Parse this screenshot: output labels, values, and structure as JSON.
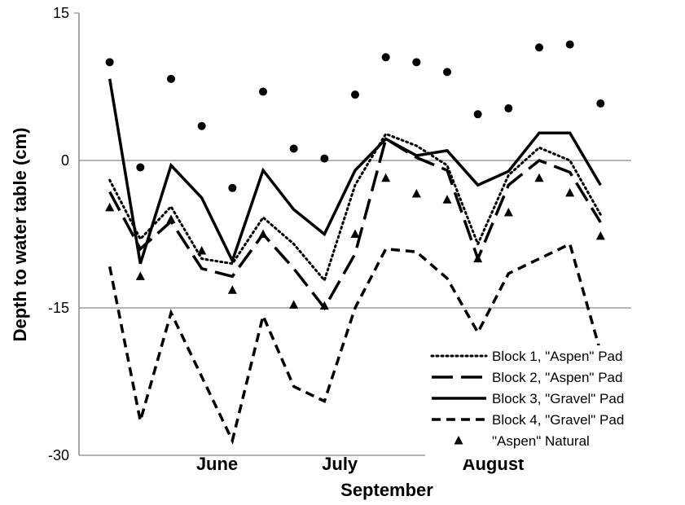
{
  "chart_data": {
    "type": "line",
    "ylabel": "Depth to water table (cm)",
    "xlabel": "September",
    "ylim": [
      -30,
      15
    ],
    "yticks": [
      "15",
      "0",
      "-15",
      "-30"
    ],
    "ytick_values": [
      15,
      0,
      -15,
      -30
    ],
    "month_labels": [
      {
        "label": "June",
        "at": 4.5
      },
      {
        "label": "July",
        "at": 8.5
      },
      {
        "label": "August",
        "at": 13.5
      }
    ],
    "x": [
      1,
      2,
      3,
      4,
      5,
      6,
      7,
      8,
      9,
      10,
      11,
      12,
      13,
      14,
      15,
      16,
      17
    ],
    "xlim": [
      0,
      18
    ],
    "gridlines": [
      0,
      -15
    ],
    "legend_position": "bottom-right",
    "series": [
      {
        "name": "Block 1, \"Aspen\" Pad",
        "style": "dotted",
        "values": [
          -2,
          -8,
          -4.7,
          -10,
          -10.5,
          -5.8,
          -8.5,
          -12.2,
          -2.5,
          2.7,
          1.5,
          -0.5,
          -8.5,
          -1.5,
          1.3,
          0,
          -5.5
        ]
      },
      {
        "name": "Block 2, \"Aspen\" Pad",
        "style": "long-dash",
        "values": [
          -3.2,
          -9,
          -6.2,
          -11,
          -11.8,
          -7.5,
          -11,
          -15,
          -9.5,
          2.2,
          0.3,
          -1,
          -10,
          -2.5,
          0,
          -1.2,
          -6.3
        ]
      },
      {
        "name": "Block 3, \"Gravel\" Pad",
        "style": "solid",
        "values": [
          8.3,
          -10.5,
          -0.5,
          -3.8,
          -10.2,
          -1,
          -5,
          -7.5,
          -1,
          2.2,
          0.5,
          1,
          -2.5,
          -1.1,
          2.8,
          2.8,
          -2.5
        ]
      },
      {
        "name": "Block 4, \"Gravel\" Pad",
        "style": "short-dash",
        "values": [
          -10.8,
          -26.5,
          -15.5,
          -22,
          -28.5,
          -15.8,
          -23,
          -24.5,
          -15,
          -9,
          -9.3,
          -12,
          -17.5,
          -11.5,
          -10,
          -8.5,
          -19.5
        ]
      },
      {
        "name": "\"Aspen\" Natural",
        "style": "triangle",
        "values": [
          -4.8,
          -11.8,
          -6,
          -9.2,
          -13.2,
          -7.5,
          -14.7,
          -14.8,
          -7.5,
          -1.8,
          -3.4,
          -4,
          -10,
          -5.3,
          -1.8,
          -3.3,
          -7.7
        ]
      },
      {
        "name": "",
        "style": "circle",
        "values": [
          10,
          -0.7,
          8.3,
          3.5,
          -2.8,
          7,
          1.2,
          0.2,
          6.7,
          10.5,
          10,
          9,
          4.7,
          5.3,
          11.5,
          11.8,
          5.8
        ]
      }
    ]
  }
}
